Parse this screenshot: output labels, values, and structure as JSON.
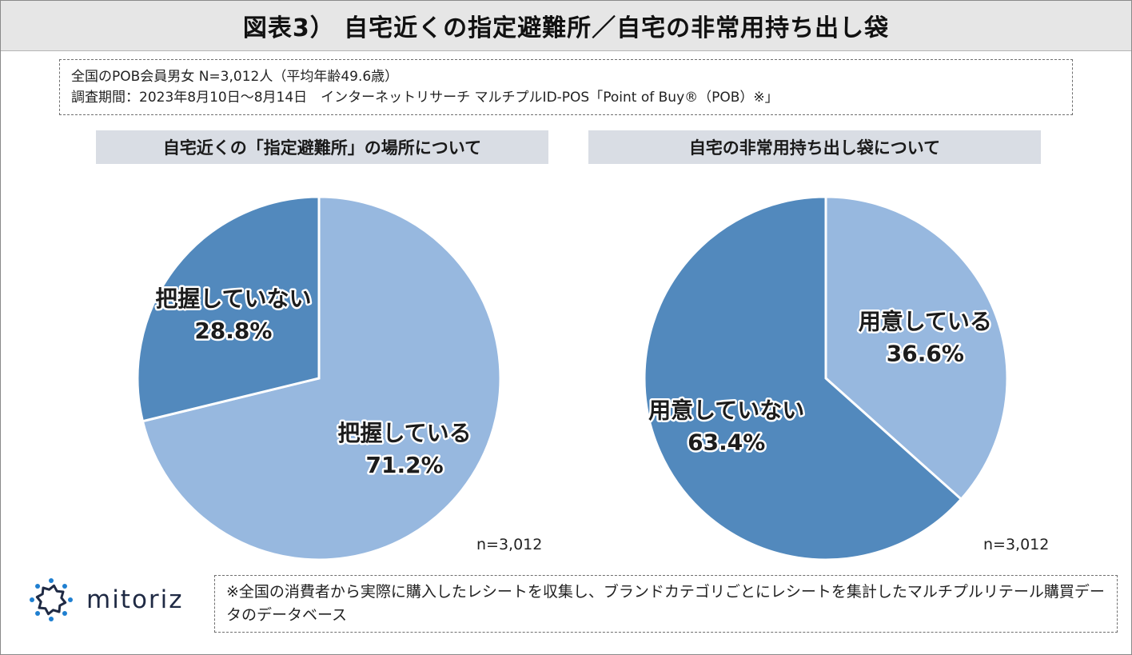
{
  "title": "図表3） 自宅近くの指定避難所／自宅の非常用持ち出し袋",
  "info": {
    "line1": "全国のPOB会員男女 N=3,012人（平均年齢49.6歳）",
    "line2": "調査期間：2023年8月10日～8月14日　インターネットリサーチ マルチプルID-POS「Point of Buy®（POB）※」"
  },
  "chart_data": [
    {
      "type": "pie",
      "title": "自宅近くの「指定避難所」の場所について",
      "n_label": "n=3,012",
      "slices": [
        {
          "label": "把握している",
          "value": 71.2,
          "value_text": "71.2%",
          "color": "#97b8df"
        },
        {
          "label": "把握していない",
          "value": 28.8,
          "value_text": "28.8%",
          "color": "#5289bd"
        }
      ]
    },
    {
      "type": "pie",
      "title": "自宅の非常用持ち出し袋について",
      "n_label": "n=3,012",
      "slices": [
        {
          "label": "用意している",
          "value": 36.6,
          "value_text": "36.6%",
          "color": "#97b8df"
        },
        {
          "label": "用意していない",
          "value": 63.4,
          "value_text": "63.4%",
          "color": "#5289bd"
        }
      ]
    }
  ],
  "logo": {
    "text": "mitoriz",
    "icon": "starburst-logo-icon",
    "color": "#1f7fd0"
  },
  "note": "※全国の消費者から実際に購入したレシートを収集し、ブランドカテゴリごとにレシートを集計したマルチプルリテール購買データのデータベース"
}
